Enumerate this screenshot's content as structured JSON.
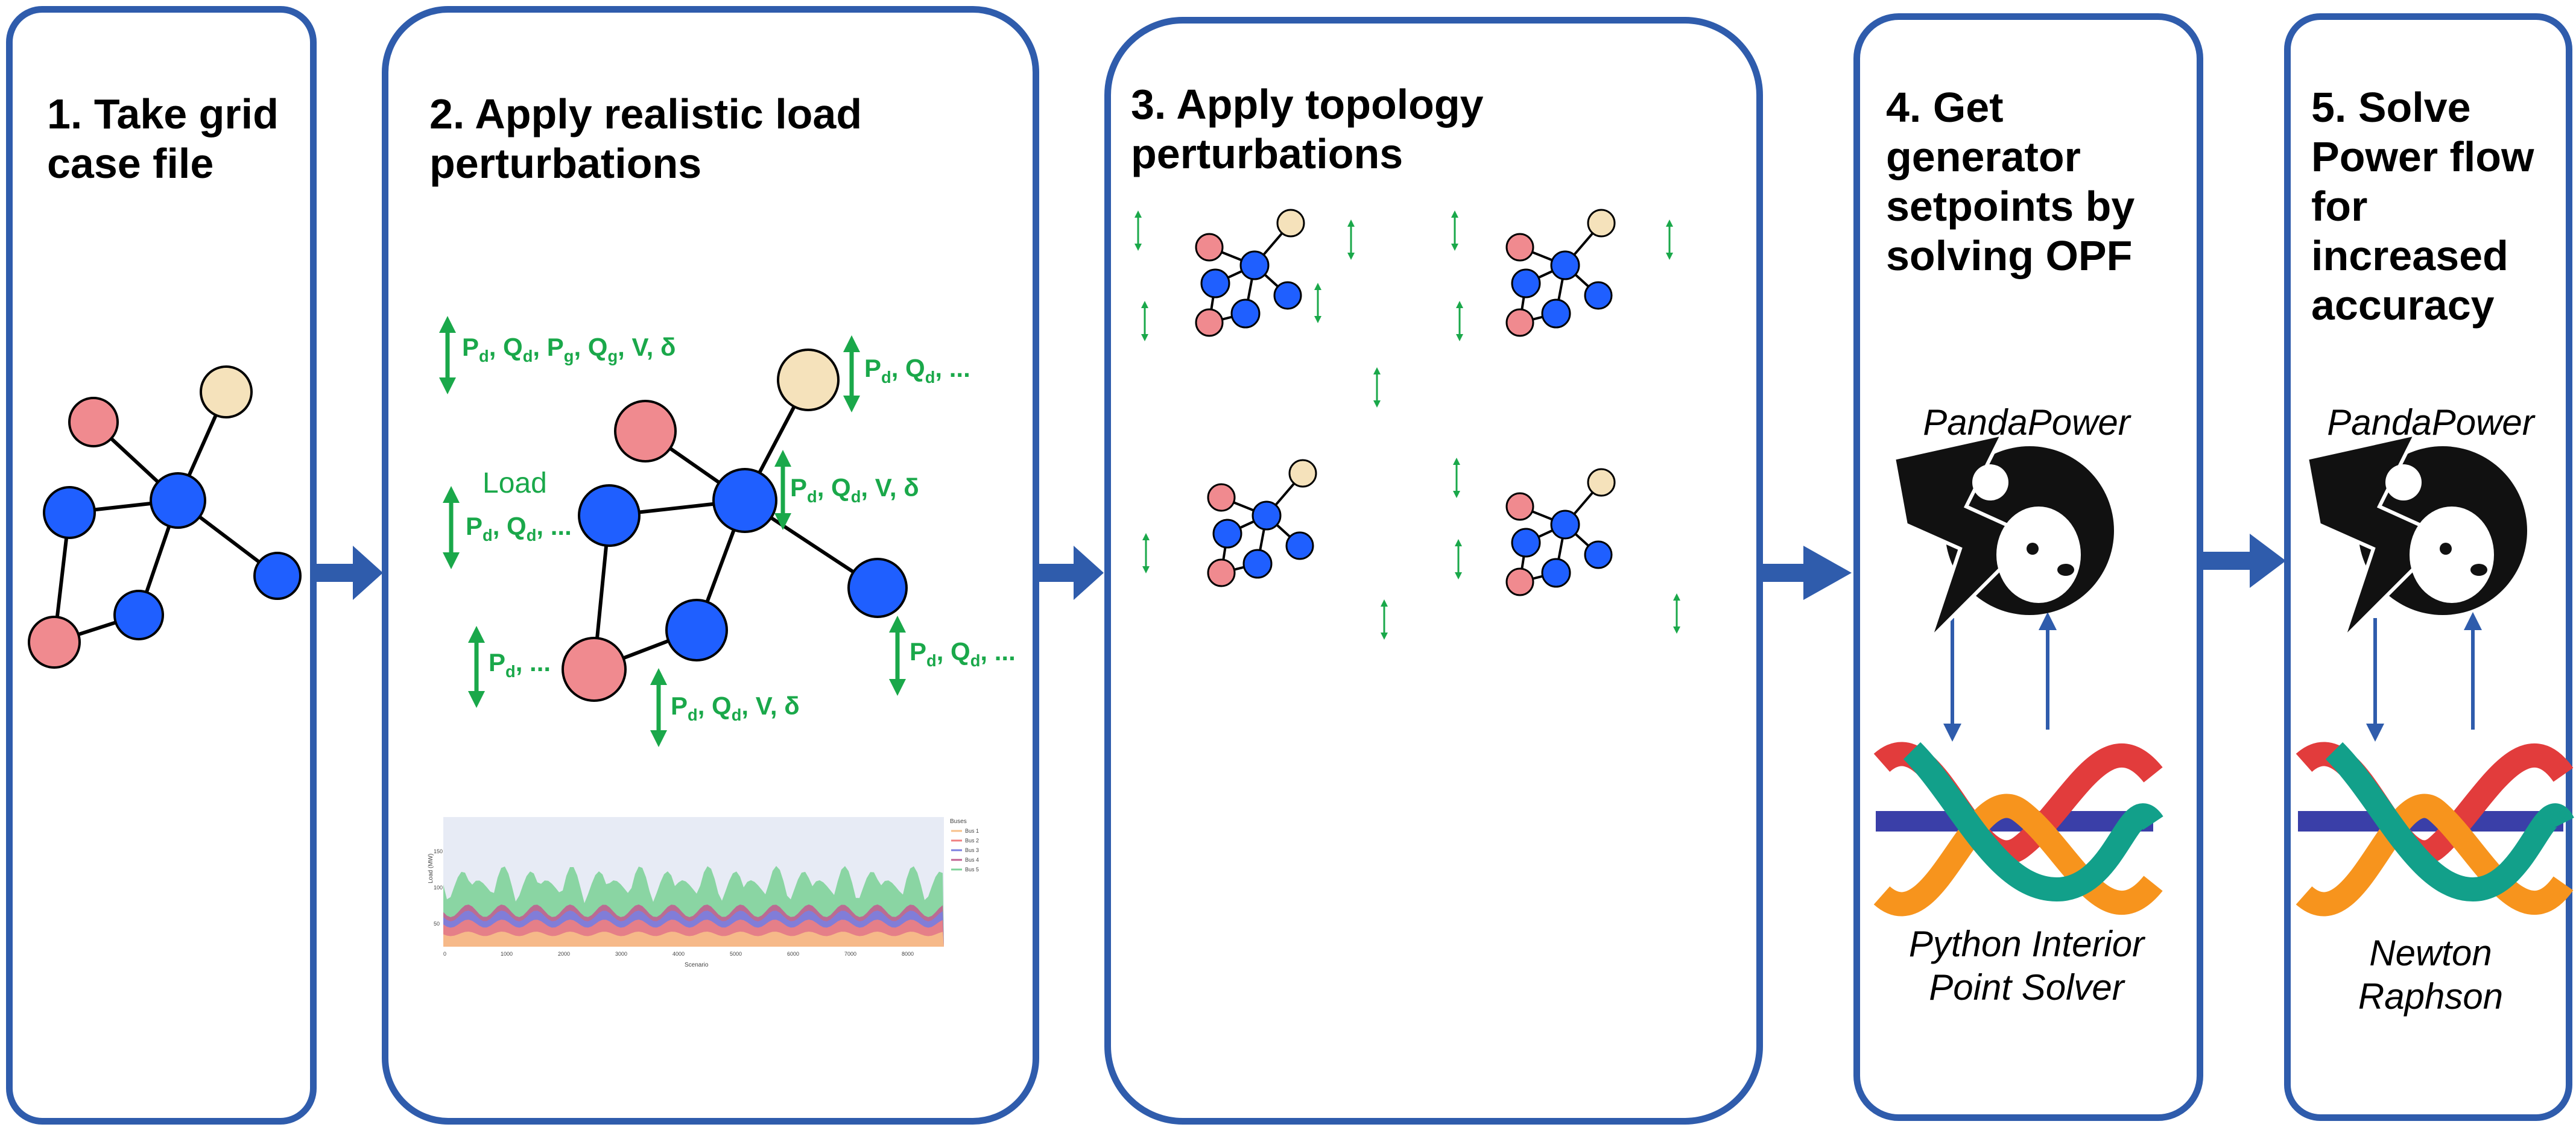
{
  "steps": [
    {
      "title": "1. Take grid case file"
    },
    {
      "title": "2. Apply realistic load perturbations"
    },
    {
      "title": "3. Apply topology perturbations"
    },
    {
      "title": "4. Get generator setpoints by solving OPF"
    },
    {
      "title": "5. Solve Power flow for increased accuracy"
    }
  ],
  "step2_labels": {
    "load": "Load",
    "gen_vars": "Pd, Qd, Pg, Qg, V, δ",
    "load_vars_top": "Pd, Qd, ...",
    "load_vars_left": "Pd, Qd, ...",
    "slack_vars": "Pd, Qd, V, δ",
    "pd_only": "Pd, ...",
    "bottom_vars": "Pd, Qd, V, δ",
    "right_vars": "Pd, Qd, ..."
  },
  "load_plot": {
    "legend_title": "Buses",
    "legend": [
      "Bus 1",
      "Bus 2",
      "Bus 3",
      "Bus 4",
      "Bus 5"
    ],
    "xlabel": "Scenario",
    "ylabel": "Load (MW)",
    "xticks": [
      "0",
      "1000",
      "2000",
      "3000",
      "4000",
      "5000",
      "6000",
      "7000",
      "8000"
    ],
    "yticks": [
      "50",
      "100",
      "150"
    ]
  },
  "step4": {
    "top_label": "PandaPower",
    "bottom_label": "Python Interior\nPoint Solver"
  },
  "step5": {
    "top_label": "PandaPower",
    "bottom_label": "Newton\nRaphson"
  },
  "colors": {
    "border": "#2f5cac",
    "arrow": "#2f5cac",
    "bus_blue": "#1f5fff",
    "bus_pink": "#f08a8f",
    "bus_beige": "#f5e2bb",
    "annotation_green": "#1aa84a"
  },
  "icons": [
    "pandapower-logo-icon",
    "pypower-helix-icon"
  ]
}
